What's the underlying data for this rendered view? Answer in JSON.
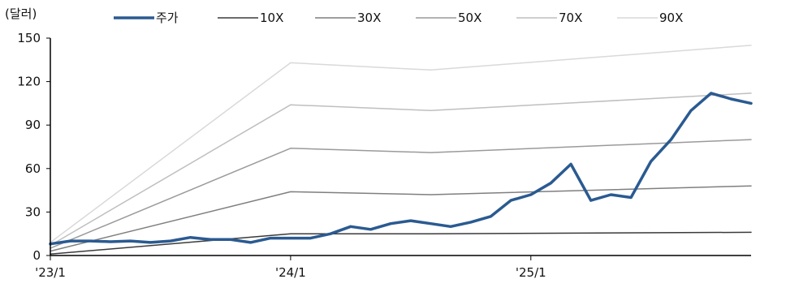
{
  "chart_data": {
    "type": "line",
    "title": "",
    "unit_label": "(달러)",
    "xlabel": "",
    "ylabel": "",
    "ylim": [
      0,
      150
    ],
    "yticks": [
      0,
      30,
      60,
      90,
      120,
      150
    ],
    "xlim": [
      "2023-01",
      "2025-12"
    ],
    "xticks": [
      {
        "date": "2023-01",
        "label": "'23/1"
      },
      {
        "date": "2024-01",
        "label": "'24/1"
      },
      {
        "date": "2025-01",
        "label": "'25/1"
      }
    ],
    "grid": false,
    "legend_position": "top",
    "series": [
      {
        "name": "주가",
        "color": "#2a5a91",
        "width": 3.5,
        "points": [
          [
            "2023-01",
            8
          ],
          [
            "2023-02",
            10
          ],
          [
            "2023-03",
            10
          ],
          [
            "2023-04",
            9.5
          ],
          [
            "2023-05",
            10
          ],
          [
            "2023-06",
            9
          ],
          [
            "2023-07",
            10
          ],
          [
            "2023-08",
            12.5
          ],
          [
            "2023-09",
            11
          ],
          [
            "2023-10",
            11
          ],
          [
            "2023-11",
            9
          ],
          [
            "2023-12",
            12
          ],
          [
            "2024-01",
            12
          ],
          [
            "2024-02",
            12
          ],
          [
            "2024-03",
            15
          ],
          [
            "2024-04",
            20
          ],
          [
            "2024-05",
            18
          ],
          [
            "2024-06",
            22
          ],
          [
            "2024-07",
            24
          ],
          [
            "2024-08",
            22
          ],
          [
            "2024-09",
            20
          ],
          [
            "2024-10",
            23
          ],
          [
            "2024-11",
            27
          ],
          [
            "2024-12",
            38
          ],
          [
            "2025-01",
            42
          ],
          [
            "2025-02",
            50
          ],
          [
            "2025-03",
            63
          ],
          [
            "2025-04",
            38
          ],
          [
            "2025-05",
            42
          ],
          [
            "2025-06",
            40
          ],
          [
            "2025-07",
            65
          ],
          [
            "2025-08",
            80
          ],
          [
            "2025-09",
            100
          ],
          [
            "2025-10",
            112
          ],
          [
            "2025-11",
            108
          ],
          [
            "2025-12",
            105
          ]
        ]
      },
      {
        "name": "10X",
        "color": "#3a3a3a",
        "width": 1.5,
        "points": [
          [
            "2023-01",
            1
          ],
          [
            "2024-01",
            15
          ],
          [
            "2024-08",
            15
          ],
          [
            "2025-12",
            16
          ]
        ]
      },
      {
        "name": "30X",
        "color": "#7f7f7f",
        "width": 1.5,
        "points": [
          [
            "2023-01",
            3
          ],
          [
            "2024-01",
            44
          ],
          [
            "2024-08",
            42
          ],
          [
            "2025-12",
            48
          ]
        ]
      },
      {
        "name": "50X",
        "color": "#9a9a9a",
        "width": 1.5,
        "points": [
          [
            "2023-01",
            5
          ],
          [
            "2024-01",
            74
          ],
          [
            "2024-08",
            71
          ],
          [
            "2025-12",
            80
          ]
        ]
      },
      {
        "name": "70X",
        "color": "#bfbfbf",
        "width": 1.5,
        "points": [
          [
            "2023-01",
            7
          ],
          [
            "2024-01",
            104
          ],
          [
            "2024-08",
            100
          ],
          [
            "2025-12",
            112
          ]
        ]
      },
      {
        "name": "90X",
        "color": "#d9d9d9",
        "width": 1.5,
        "points": [
          [
            "2023-01",
            9
          ],
          [
            "2024-01",
            133
          ],
          [
            "2024-08",
            128
          ],
          [
            "2025-12",
            145
          ]
        ]
      }
    ]
  }
}
